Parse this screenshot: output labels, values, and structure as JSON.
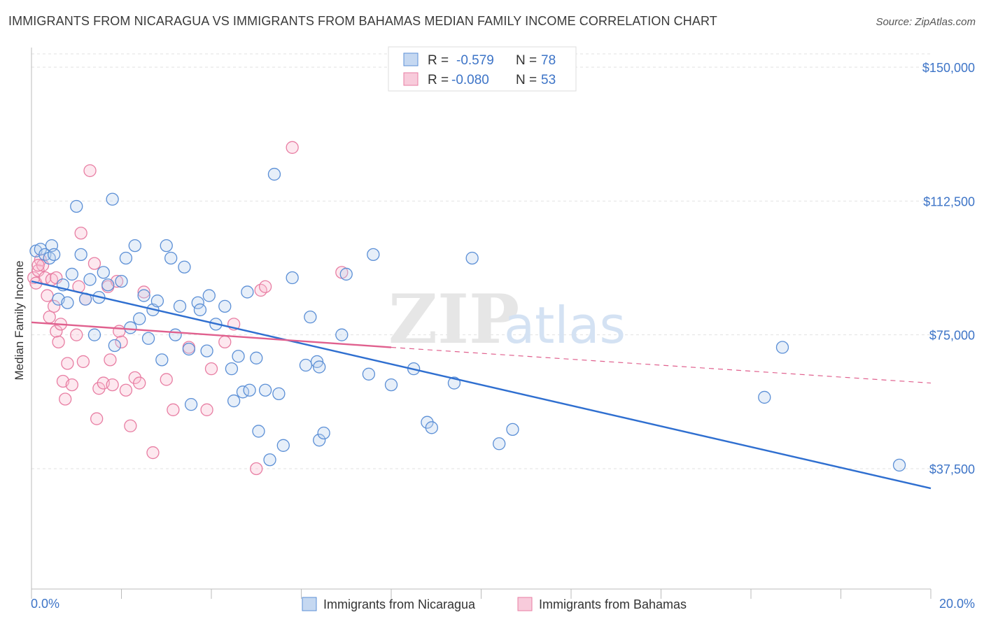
{
  "header": {
    "title": "IMMIGRANTS FROM NICARAGUA VS IMMIGRANTS FROM BAHAMAS MEDIAN FAMILY INCOME CORRELATION CHART",
    "source": "Source: ZipAtlas.com"
  },
  "watermark": {
    "zip": "ZIP",
    "atlas": "atlas"
  },
  "legend": {
    "rows": [
      {
        "r_label": "R =",
        "r_value": "-0.579",
        "n_label": "N =",
        "n_value": "78"
      },
      {
        "r_label": "R =",
        "r_value": "-0.080",
        "n_label": "N =",
        "n_value": "53"
      }
    ]
  },
  "colors": {
    "blue": "#5b8fd6",
    "blue_line": "#2f6fd0",
    "pink": "#e87ea3",
    "pink_line": "#e0608e"
  },
  "chart_data": {
    "type": "scatter",
    "title": "IMMIGRANTS FROM NICARAGUA VS IMMIGRANTS FROM BAHAMAS MEDIAN FAMILY INCOME CORRELATION CHART",
    "xlabel": "",
    "ylabel": "Median Family Income",
    "xlim": [
      0,
      20
    ],
    "ylim": [
      0,
      155000
    ],
    "x_tick_labels": [
      "0.0%",
      "20.0%"
    ],
    "y_ticks": [
      37500,
      75000,
      112500,
      150000
    ],
    "y_tick_labels": [
      "$37,500",
      "$75,000",
      "$112,500",
      "$150,000"
    ],
    "grid": true,
    "legend_position": "top-center",
    "series": [
      {
        "name": "Immigrants from Nicaragua",
        "color": "#5b8fd6",
        "trend": {
          "x": [
            0,
            20
          ],
          "y": [
            90000,
            32000
          ]
        },
        "points": [
          [
            0.1,
            98500
          ],
          [
            0.2,
            99000
          ],
          [
            0.3,
            97500
          ],
          [
            0.4,
            96500
          ],
          [
            0.45,
            100000
          ],
          [
            0.5,
            97500
          ],
          [
            0.6,
            85000
          ],
          [
            0.7,
            89000
          ],
          [
            0.8,
            84000
          ],
          [
            0.9,
            92000
          ],
          [
            1.0,
            111000
          ],
          [
            1.1,
            97500
          ],
          [
            1.2,
            85000
          ],
          [
            1.3,
            90500
          ],
          [
            1.4,
            75000
          ],
          [
            1.5,
            85500
          ],
          [
            1.6,
            92500
          ],
          [
            1.7,
            89000
          ],
          [
            1.8,
            113000
          ],
          [
            1.85,
            72000
          ],
          [
            2.0,
            90000
          ],
          [
            2.1,
            96500
          ],
          [
            2.2,
            77000
          ],
          [
            2.3,
            100000
          ],
          [
            2.4,
            79500
          ],
          [
            2.5,
            86000
          ],
          [
            2.6,
            74000
          ],
          [
            2.7,
            82000
          ],
          [
            2.8,
            84500
          ],
          [
            2.9,
            68000
          ],
          [
            3.0,
            100000
          ],
          [
            3.1,
            96500
          ],
          [
            3.2,
            75000
          ],
          [
            3.3,
            83000
          ],
          [
            3.4,
            94000
          ],
          [
            3.5,
            71000
          ],
          [
            3.55,
            55500
          ],
          [
            3.7,
            84000
          ],
          [
            3.75,
            82000
          ],
          [
            3.9,
            70500
          ],
          [
            3.95,
            86000
          ],
          [
            4.1,
            78000
          ],
          [
            4.3,
            83000
          ],
          [
            4.45,
            65500
          ],
          [
            4.5,
            56500
          ],
          [
            4.6,
            69000
          ],
          [
            4.7,
            59000
          ],
          [
            4.8,
            87000
          ],
          [
            4.85,
            59500
          ],
          [
            5.0,
            68500
          ],
          [
            5.05,
            48000
          ],
          [
            5.2,
            59500
          ],
          [
            5.3,
            40000
          ],
          [
            5.4,
            120000
          ],
          [
            5.5,
            58500
          ],
          [
            5.6,
            44000
          ],
          [
            5.8,
            91000
          ],
          [
            6.1,
            66500
          ],
          [
            6.2,
            80000
          ],
          [
            6.35,
            67500
          ],
          [
            6.4,
            45500
          ],
          [
            6.4,
            66000
          ],
          [
            6.5,
            47500
          ],
          [
            6.9,
            75000
          ],
          [
            7.0,
            92000
          ],
          [
            7.5,
            64000
          ],
          [
            7.6,
            97500
          ],
          [
            8.0,
            61000
          ],
          [
            8.5,
            65500
          ],
          [
            8.8,
            50500
          ],
          [
            8.9,
            49000
          ],
          [
            9.4,
            61500
          ],
          [
            9.8,
            96500
          ],
          [
            10.4,
            44500
          ],
          [
            10.7,
            48500
          ],
          [
            16.3,
            57500
          ],
          [
            16.7,
            71500
          ],
          [
            19.3,
            38500
          ]
        ]
      },
      {
        "name": "Immigrants from Bahamas",
        "color": "#e87ea3",
        "trend": {
          "x": [
            0,
            8
          ],
          "y": [
            78500,
            71500
          ],
          "dashed_to": [
            20,
            61500
          ]
        },
        "points": [
          [
            0.05,
            91000
          ],
          [
            0.1,
            89500
          ],
          [
            0.15,
            93000
          ],
          [
            0.2,
            96000
          ],
          [
            0.25,
            94500
          ],
          [
            0.3,
            91000
          ],
          [
            0.35,
            86000
          ],
          [
            0.4,
            80000
          ],
          [
            0.5,
            83000
          ],
          [
            0.55,
            76000
          ],
          [
            0.6,
            73000
          ],
          [
            0.65,
            78000
          ],
          [
            0.7,
            62000
          ],
          [
            0.75,
            57000
          ],
          [
            0.8,
            67000
          ],
          [
            0.9,
            61000
          ],
          [
            1.0,
            75000
          ],
          [
            1.05,
            88500
          ],
          [
            1.1,
            103500
          ],
          [
            1.15,
            67500
          ],
          [
            1.2,
            85000
          ],
          [
            1.3,
            121000
          ],
          [
            1.4,
            95000
          ],
          [
            1.45,
            51500
          ],
          [
            1.5,
            60000
          ],
          [
            1.6,
            61500
          ],
          [
            1.7,
            88500
          ],
          [
            1.75,
            68000
          ],
          [
            1.8,
            61000
          ],
          [
            1.9,
            90000
          ],
          [
            1.95,
            76000
          ],
          [
            2.0,
            73000
          ],
          [
            2.1,
            59500
          ],
          [
            2.2,
            49500
          ],
          [
            2.3,
            63000
          ],
          [
            2.4,
            61500
          ],
          [
            2.5,
            87000
          ],
          [
            2.7,
            42000
          ],
          [
            3.0,
            62500
          ],
          [
            3.15,
            54000
          ],
          [
            3.5,
            71500
          ],
          [
            3.9,
            54000
          ],
          [
            4.0,
            65500
          ],
          [
            4.3,
            73000
          ],
          [
            4.5,
            78000
          ],
          [
            5.0,
            37500
          ],
          [
            5.1,
            87500
          ],
          [
            5.2,
            88500
          ],
          [
            5.8,
            127500
          ],
          [
            6.9,
            92500
          ],
          [
            0.15,
            94500
          ],
          [
            0.45,
            90500
          ],
          [
            0.55,
            91000
          ]
        ]
      }
    ]
  }
}
